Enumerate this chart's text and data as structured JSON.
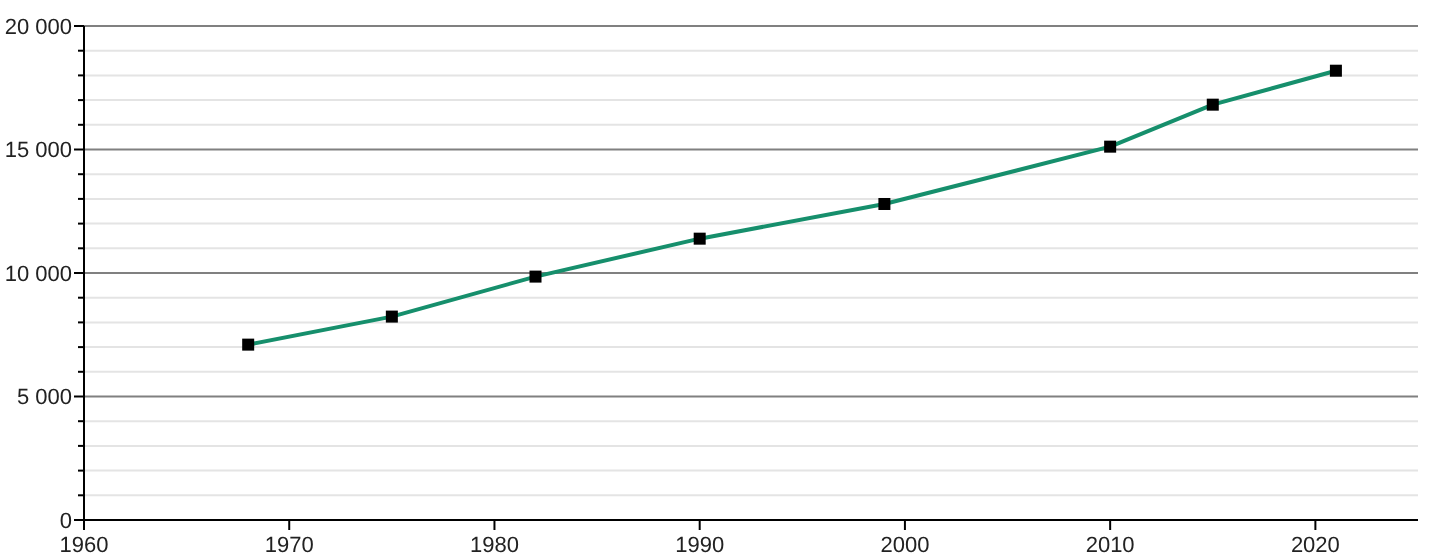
{
  "chart_data": {
    "type": "line",
    "x": [
      1968,
      1975,
      1982,
      1990,
      1999,
      2010,
      2015,
      2021
    ],
    "series": [
      {
        "color": "#168f6c",
        "values": [
          7100,
          8235,
          9854,
          11390,
          12794,
          15115,
          16815,
          18190
        ]
      }
    ],
    "xlim": [
      1960,
      2025
    ],
    "xticks": [
      1960,
      1970,
      1980,
      1990,
      2000,
      2010,
      2020
    ],
    "ylim": [
      0,
      20000
    ],
    "yticks": [
      {
        "value": 0,
        "label": "0"
      },
      {
        "value": 1000,
        "label": null
      },
      {
        "value": 2000,
        "label": null
      },
      {
        "value": 3000,
        "label": null
      },
      {
        "value": 4000,
        "label": null
      },
      {
        "value": 5000,
        "label": "5 000"
      },
      {
        "value": 6000,
        "label": null
      },
      {
        "value": 7000,
        "label": null
      },
      {
        "value": 8000,
        "label": null
      },
      {
        "value": 9000,
        "label": null
      },
      {
        "value": 10000,
        "label": "10 000"
      },
      {
        "value": 11000,
        "label": null
      },
      {
        "value": 12000,
        "label": null
      },
      {
        "value": 13000,
        "label": null
      },
      {
        "value": 14000,
        "label": null
      },
      {
        "value": 15000,
        "label": "15 000"
      },
      {
        "value": 16000,
        "label": null
      },
      {
        "value": 17000,
        "label": null
      },
      {
        "value": 18000,
        "label": null
      },
      {
        "value": 19000,
        "label": null
      },
      {
        "value": 20000,
        "label": "20 000"
      }
    ],
    "grid": "y",
    "marker": "square",
    "line_style": "solid"
  }
}
